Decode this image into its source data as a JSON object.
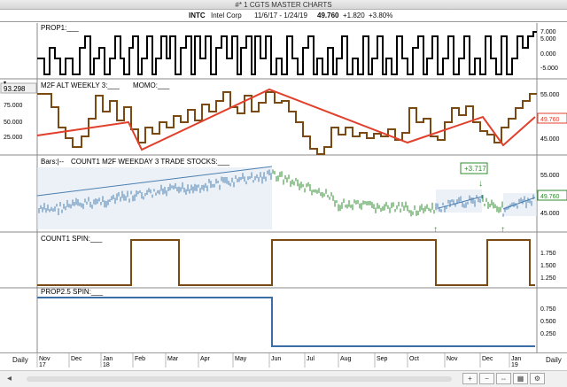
{
  "window": {
    "title": "#* 1 CGTS MASTER CHARTS"
  },
  "symbol_bar": {
    "symbol": "INTC",
    "company": "Intel Corp",
    "date_range": "11/6/17 - 1/24/19",
    "last": "49.760",
    "change": "+1.820",
    "change_pct": "+3.80%"
  },
  "panels": {
    "prop1": {
      "label": "PROP1:___",
      "axis": [
        "7.000",
        "5.000",
        "0.000",
        "-5.000"
      ]
    },
    "m2f": {
      "label": "M2F ALT WEEKLY 3:___",
      "label2": "MOMO:___",
      "badge": "93.298",
      "left_axis": [
        "75.000",
        "50.000",
        "25.000"
      ],
      "right_axis": [
        "55.000",
        "45.000"
      ],
      "price_tag": "49.760"
    },
    "bars": {
      "label": "Bars:|--",
      "label2": "COUNT1 M2F WEEKDAY 3 TRADE STOCKS:___",
      "right_axis": [
        "55.000",
        "45.000"
      ],
      "price_tag": "49.760",
      "callout": "+3.717"
    },
    "count1": {
      "label": "COUNT1 SPIN:___",
      "axis": [
        "1.750",
        "1.500",
        "1.250"
      ]
    },
    "prop25": {
      "label": "PROP2.5 SPIN:___",
      "axis": [
        "0.750",
        "0.500",
        "0.250"
      ]
    }
  },
  "time_axis": {
    "months": [
      "Nov",
      "Dec",
      "Jan",
      "Feb",
      "Mar",
      "Apr",
      "May",
      "Jun",
      "Jul",
      "Aug",
      "Sep",
      "Oct",
      "Nov",
      "Dec",
      "Jan"
    ],
    "years": [
      "17",
      "18",
      "19"
    ]
  },
  "bottom": {
    "periodicity_left": "Daily",
    "periodicity_right": "Daily"
  },
  "colors": {
    "price_line": "#7a4a12",
    "trend_line": "#e0402c",
    "blue_line": "#3a6ea5",
    "green_bars": "#2e8b2e",
    "blue_bars": "#4a7fb0"
  }
}
